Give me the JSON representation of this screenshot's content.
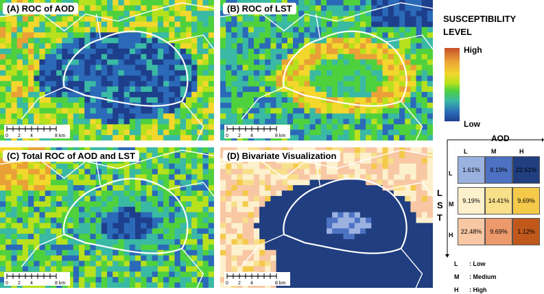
{
  "panels": [
    {
      "id": "A",
      "label": "(A) ROC of AOD",
      "palette": "roc",
      "seed": 11,
      "pattern": "aod"
    },
    {
      "id": "B",
      "label": "(B) ROC of LST",
      "palette": "roc",
      "seed": 23,
      "pattern": "lst"
    },
    {
      "id": "C",
      "label": "(C) Total ROC of AOD and LST",
      "palette": "roc",
      "seed": 37,
      "pattern": "total"
    },
    {
      "id": "D",
      "label": "(D) Bivariate Visualization",
      "palette": "biv",
      "seed": 53,
      "pattern": "biv"
    }
  ],
  "scalebar": {
    "ticks": [
      "0",
      "2",
      "4",
      "8 km"
    ]
  },
  "legend": {
    "title_line1": "SUSCEPTIBILITY",
    "title_line2": "LEVEL",
    "high": "High",
    "low": "Low",
    "colors": [
      "#c84f2b",
      "#e9a137",
      "#f3d72d",
      "#b7e11c",
      "#4fd13e",
      "#3ab9a4",
      "#2b6ab8",
      "#1e3f8c"
    ]
  },
  "matrix": {
    "x_title": "AOD",
    "y_title": [
      "L",
      "S",
      "T"
    ],
    "col_labels": [
      "L",
      "M",
      "H"
    ],
    "row_labels": [
      "L",
      "M",
      "H"
    ],
    "cells": [
      [
        {
          "value": "1.61%",
          "color": "#9bb2e0"
        },
        {
          "value": "9.19%",
          "color": "#4d72c4"
        },
        {
          "value": "22.61%",
          "color": "#203e80"
        }
      ],
      [
        {
          "value": "9.19%",
          "color": "#fdf0cd"
        },
        {
          "value": "14.41%",
          "color": "#f8df8a"
        },
        {
          "value": "9.69%",
          "color": "#f5c94a"
        }
      ],
      [
        {
          "value": "22.48%",
          "color": "#f8c7a4"
        },
        {
          "value": "9.69%",
          "color": "#ec9a6b"
        },
        {
          "value": "1.12%",
          "color": "#c0581c"
        }
      ]
    ]
  },
  "key": [
    {
      "code": "L",
      "desc": ": Low"
    },
    {
      "code": "M",
      "desc": ": Medium"
    },
    {
      "code": "H",
      "desc": ": High"
    }
  ]
}
